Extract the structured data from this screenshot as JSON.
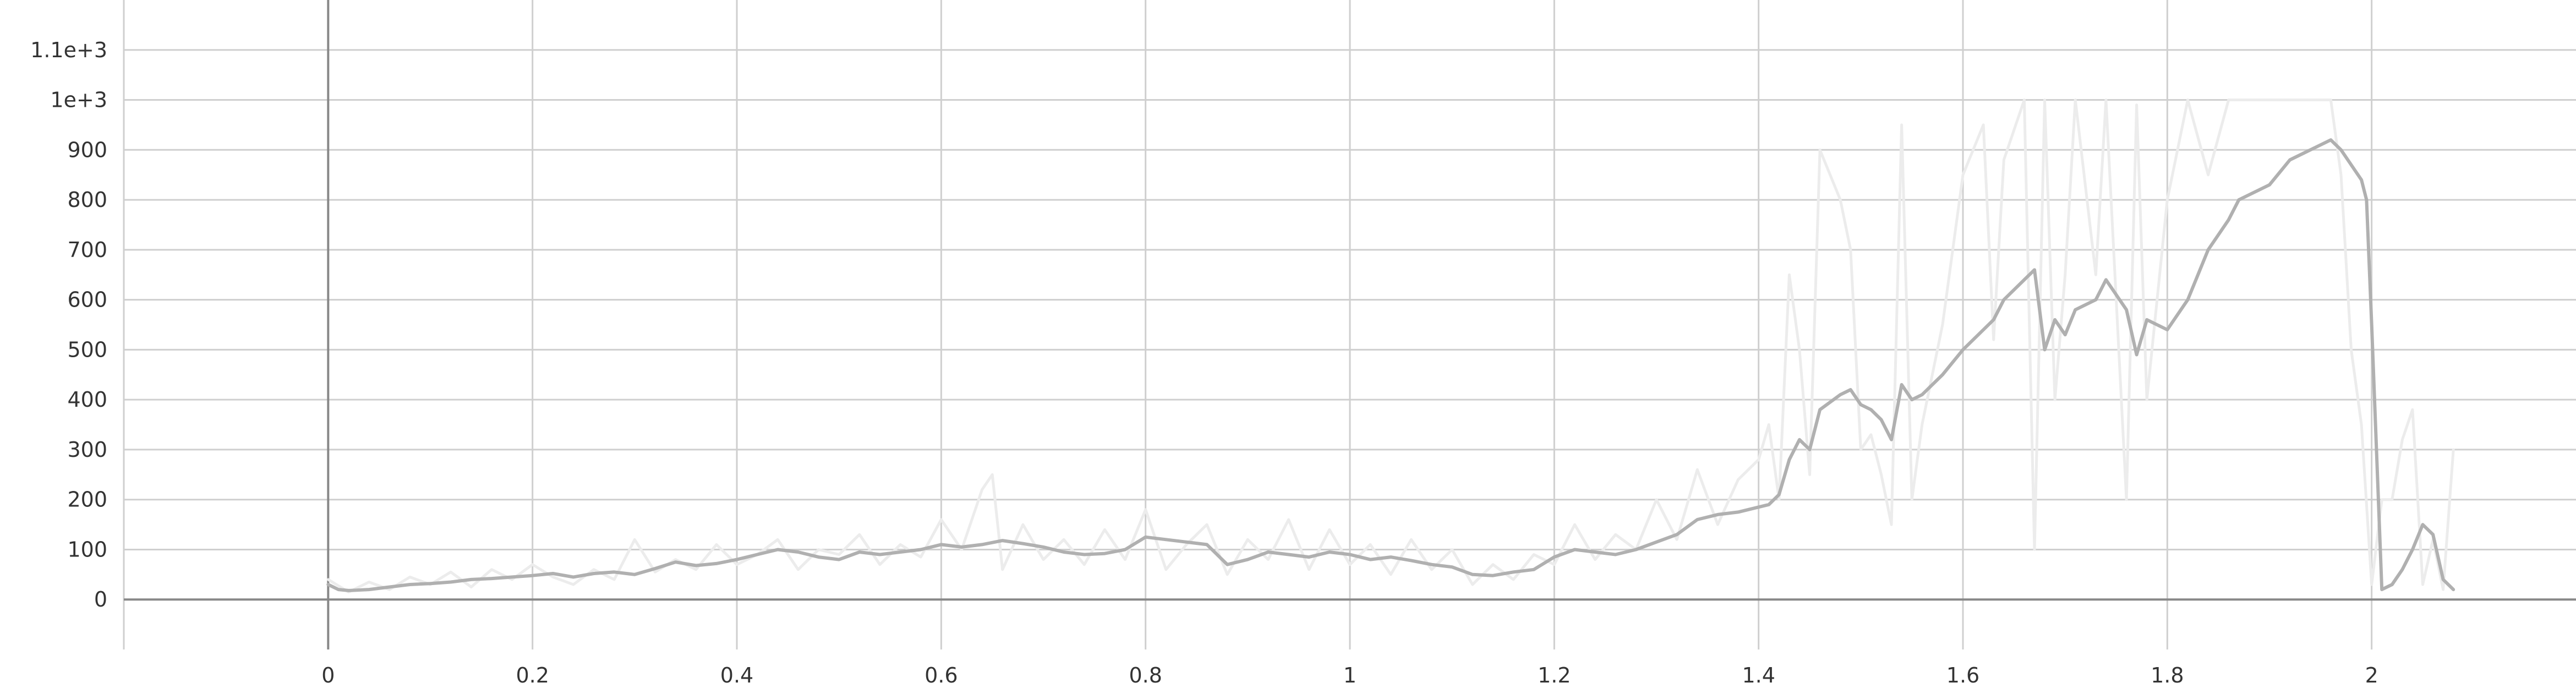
{
  "chart_data": {
    "type": "line",
    "title": "",
    "xlabel": "",
    "ylabel": "",
    "xlim": [
      -0.2,
      2.2
    ],
    "ylim": [
      -100,
      1200
    ],
    "x_ticks": [
      0,
      0.2,
      0.4,
      0.6,
      0.8,
      1,
      1.2,
      1.4,
      1.6,
      1.8,
      2
    ],
    "x_tick_labels": [
      "0",
      "0.2",
      "0.4",
      "0.6",
      "0.8",
      "1",
      "1.2",
      "1.4",
      "1.6",
      "1.8",
      "2"
    ],
    "y_ticks": [
      0,
      100,
      200,
      300,
      400,
      500,
      600,
      700,
      800,
      900,
      1000,
      1100
    ],
    "y_tick_labels": [
      "0",
      "100",
      "200",
      "300",
      "400",
      "500",
      "600",
      "700",
      "800",
      "900",
      "1e+3",
      "1.1e+3"
    ],
    "grid": true,
    "legend": "none",
    "colors": {
      "smoothed": "#b0b0b0",
      "raw": "#ececec",
      "axis": "#888888",
      "grid": "#cfcfcf"
    },
    "series": [
      {
        "x": [
          0,
          0.01,
          0.02,
          0.04,
          0.06,
          0.08,
          0.1,
          0.12,
          0.14,
          0.16,
          0.18,
          0.2,
          0.22,
          0.24,
          0.26,
          0.28,
          0.3,
          0.32,
          0.34,
          0.36,
          0.38,
          0.4,
          0.42,
          0.44,
          0.46,
          0.48,
          0.5,
          0.52,
          0.54,
          0.56,
          0.58,
          0.6,
          0.62,
          0.64,
          0.66,
          0.68,
          0.7,
          0.72,
          0.74,
          0.76,
          0.78,
          0.8,
          0.82,
          0.84,
          0.86,
          0.88,
          0.9,
          0.92,
          0.94,
          0.96,
          0.98,
          1.0,
          1.02,
          1.04,
          1.06,
          1.08,
          1.1,
          1.12,
          1.14,
          1.16,
          1.18,
          1.2,
          1.22,
          1.24,
          1.26,
          1.28,
          1.3,
          1.32,
          1.34,
          1.36,
          1.38,
          1.4,
          1.41,
          1.42,
          1.43,
          1.44,
          1.45,
          1.46,
          1.48,
          1.49,
          1.5,
          1.51,
          1.52,
          1.53,
          1.54,
          1.55,
          1.56,
          1.58,
          1.6,
          1.62,
          1.63,
          1.64,
          1.66,
          1.67,
          1.68,
          1.69,
          1.7,
          1.71,
          1.73,
          1.74,
          1.76,
          1.77,
          1.78,
          1.8,
          1.82,
          1.84,
          1.86,
          1.87,
          1.9,
          1.92,
          1.94,
          1.96,
          1.97,
          1.98,
          1.99,
          1.995,
          2.0,
          2.01,
          2.02,
          2.03,
          2.04,
          2.05,
          2.06,
          2.07,
          2.08
        ],
        "values": [
          30,
          20,
          18,
          20,
          25,
          30,
          32,
          35,
          40,
          42,
          45,
          48,
          52,
          45,
          52,
          55,
          50,
          62,
          75,
          68,
          72,
          80,
          90,
          100,
          95,
          85,
          80,
          95,
          90,
          95,
          100,
          110,
          105,
          110,
          118,
          112,
          105,
          95,
          90,
          92,
          100,
          125,
          120,
          115,
          110,
          70,
          80,
          95,
          90,
          85,
          95,
          90,
          80,
          85,
          78,
          70,
          65,
          50,
          48,
          55,
          60,
          85,
          100,
          95,
          90,
          100,
          115,
          130,
          160,
          170,
          175,
          185,
          190,
          210,
          280,
          320,
          300,
          380,
          410,
          420,
          390,
          380,
          360,
          320,
          430,
          400,
          410,
          450,
          500,
          540,
          560,
          600,
          640,
          660,
          500,
          560,
          530,
          580,
          600,
          640,
          580,
          490,
          560,
          540,
          600,
          700,
          760,
          800,
          830,
          880,
          900,
          920,
          900,
          870,
          840,
          800,
          550,
          20,
          30,
          60,
          100,
          150,
          130,
          40,
          20
        ]
      },
      {
        "x": [
          0,
          0.02,
          0.04,
          0.06,
          0.08,
          0.1,
          0.12,
          0.14,
          0.16,
          0.18,
          0.2,
          0.22,
          0.24,
          0.26,
          0.28,
          0.3,
          0.32,
          0.34,
          0.36,
          0.38,
          0.4,
          0.42,
          0.44,
          0.46,
          0.48,
          0.5,
          0.52,
          0.54,
          0.56,
          0.58,
          0.6,
          0.62,
          0.64,
          0.65,
          0.66,
          0.68,
          0.7,
          0.72,
          0.74,
          0.76,
          0.78,
          0.8,
          0.82,
          0.84,
          0.86,
          0.88,
          0.9,
          0.92,
          0.94,
          0.96,
          0.98,
          1.0,
          1.02,
          1.04,
          1.06,
          1.08,
          1.1,
          1.12,
          1.14,
          1.16,
          1.18,
          1.2,
          1.22,
          1.24,
          1.26,
          1.28,
          1.3,
          1.32,
          1.34,
          1.36,
          1.38,
          1.4,
          1.41,
          1.42,
          1.43,
          1.44,
          1.45,
          1.46,
          1.48,
          1.49,
          1.5,
          1.51,
          1.52,
          1.53,
          1.54,
          1.55,
          1.56,
          1.58,
          1.6,
          1.62,
          1.63,
          1.64,
          1.66,
          1.67,
          1.68,
          1.69,
          1.7,
          1.71,
          1.73,
          1.74,
          1.76,
          1.77,
          1.78,
          1.8,
          1.82,
          1.84,
          1.86,
          1.9,
          1.92,
          1.94,
          1.96,
          1.97,
          1.98,
          1.99,
          2.0,
          2.01,
          2.02,
          2.03,
          2.04,
          2.05,
          2.06,
          2.07,
          2.08
        ],
        "values": [
          40,
          15,
          35,
          20,
          45,
          30,
          55,
          25,
          60,
          40,
          70,
          45,
          30,
          60,
          40,
          120,
          55,
          80,
          60,
          110,
          70,
          90,
          120,
          60,
          100,
          90,
          130,
          70,
          110,
          85,
          160,
          100,
          220,
          250,
          60,
          150,
          80,
          120,
          70,
          140,
          80,
          180,
          60,
          110,
          150,
          50,
          120,
          80,
          160,
          60,
          140,
          70,
          110,
          50,
          120,
          60,
          100,
          30,
          70,
          40,
          90,
          70,
          150,
          80,
          130,
          100,
          200,
          120,
          260,
          150,
          240,
          280,
          350,
          200,
          650,
          500,
          250,
          900,
          800,
          700,
          300,
          330,
          250,
          150,
          950,
          200,
          350,
          550,
          850,
          950,
          520,
          880,
          1000,
          100,
          1000,
          400,
          650,
          1000,
          650,
          1000,
          200,
          990,
          400,
          800,
          1000,
          850,
          1000,
          1000,
          1000,
          1000,
          1000,
          850,
          500,
          350,
          30,
          200,
          200,
          320,
          380,
          30,
          120,
          20,
          300
        ]
      }
    ]
  }
}
